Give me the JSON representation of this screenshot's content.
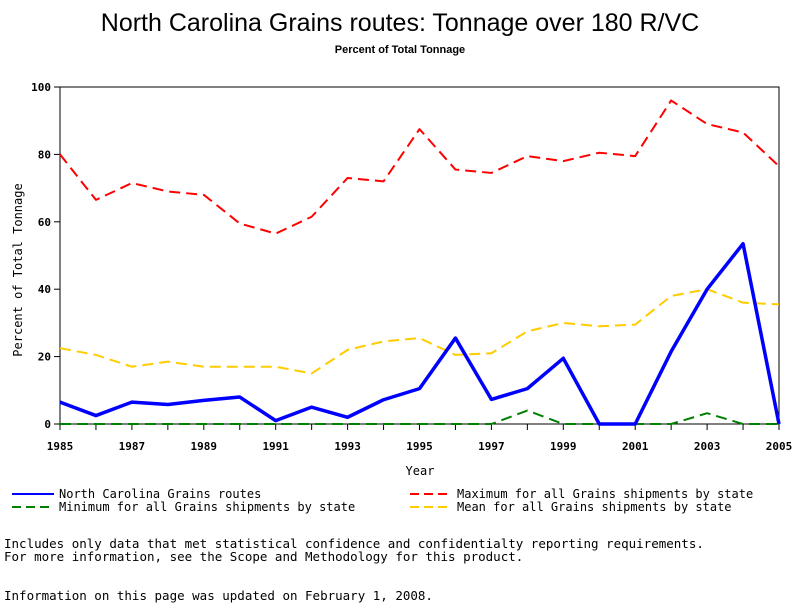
{
  "chart_data": {
    "type": "line",
    "title": "North Carolina Grains routes: Tonnage over 180 R/VC",
    "subtitle": "Percent of Total Tonnage",
    "xlabel": "Year",
    "ylabel": "Percent of Total Tonnage",
    "xlim": [
      1985,
      2005
    ],
    "ylim": [
      0,
      100
    ],
    "xticks": [
      "1985",
      "1987",
      "1989",
      "1991",
      "1993",
      "1995",
      "1997",
      "1999",
      "2001",
      "2003",
      "2005"
    ],
    "yticks": [
      "0",
      "20",
      "40",
      "60",
      "80",
      "100"
    ],
    "x": [
      1985,
      1986,
      1987,
      1988,
      1989,
      1990,
      1991,
      1992,
      1993,
      1994,
      1995,
      1996,
      1997,
      1998,
      1999,
      2000,
      2001,
      2002,
      2003,
      2004,
      2005
    ],
    "grid": false,
    "legend_placement": "bottom",
    "series": [
      {
        "name": "North Carolina Grains routes",
        "color": "#0000ff",
        "style": "solid",
        "values": [
          6.5,
          2.5,
          6.5,
          5.8,
          7.0,
          8.0,
          1.0,
          5.0,
          2.0,
          7.2,
          10.5,
          25.5,
          7.3,
          10.5,
          19.5,
          0,
          0,
          21.5,
          40.0,
          53.5,
          0
        ]
      },
      {
        "name": "Maximum for all Grains shipments by state",
        "color": "#ff0000",
        "style": "dashed",
        "values": [
          80.0,
          66.5,
          71.5,
          69.0,
          68.0,
          59.5,
          56.5,
          61.5,
          73.0,
          72.0,
          87.5,
          75.5,
          74.5,
          79.5,
          78.0,
          80.5,
          79.5,
          96.0,
          89.0,
          86.5,
          76.5
        ]
      },
      {
        "name": "Minimum for all Grains shipments by state",
        "color": "#008000",
        "style": "dashed",
        "values": [
          0,
          0,
          0,
          0,
          0,
          0,
          0,
          0,
          0,
          0,
          0,
          0,
          0,
          4.0,
          0,
          0,
          0,
          0,
          3.2,
          0,
          0
        ]
      },
      {
        "name": "Mean for all Grains shipments by state",
        "color": "#ffcc00",
        "style": "dashed",
        "values": [
          22.5,
          20.5,
          17.0,
          18.5,
          17.0,
          17.0,
          17.0,
          15.0,
          22.0,
          24.5,
          25.5,
          20.5,
          21.0,
          27.5,
          30.0,
          29.0,
          29.5,
          38.0,
          40.0,
          36.0,
          35.5
        ]
      }
    ]
  },
  "notes": {
    "line1": "Includes only data that met statistical confidence and confidentialty reporting requirements.",
    "line2": "For more information, see the Scope and Methodology for this product.",
    "updated": "Information on this page was updated on February 1, 2008."
  }
}
